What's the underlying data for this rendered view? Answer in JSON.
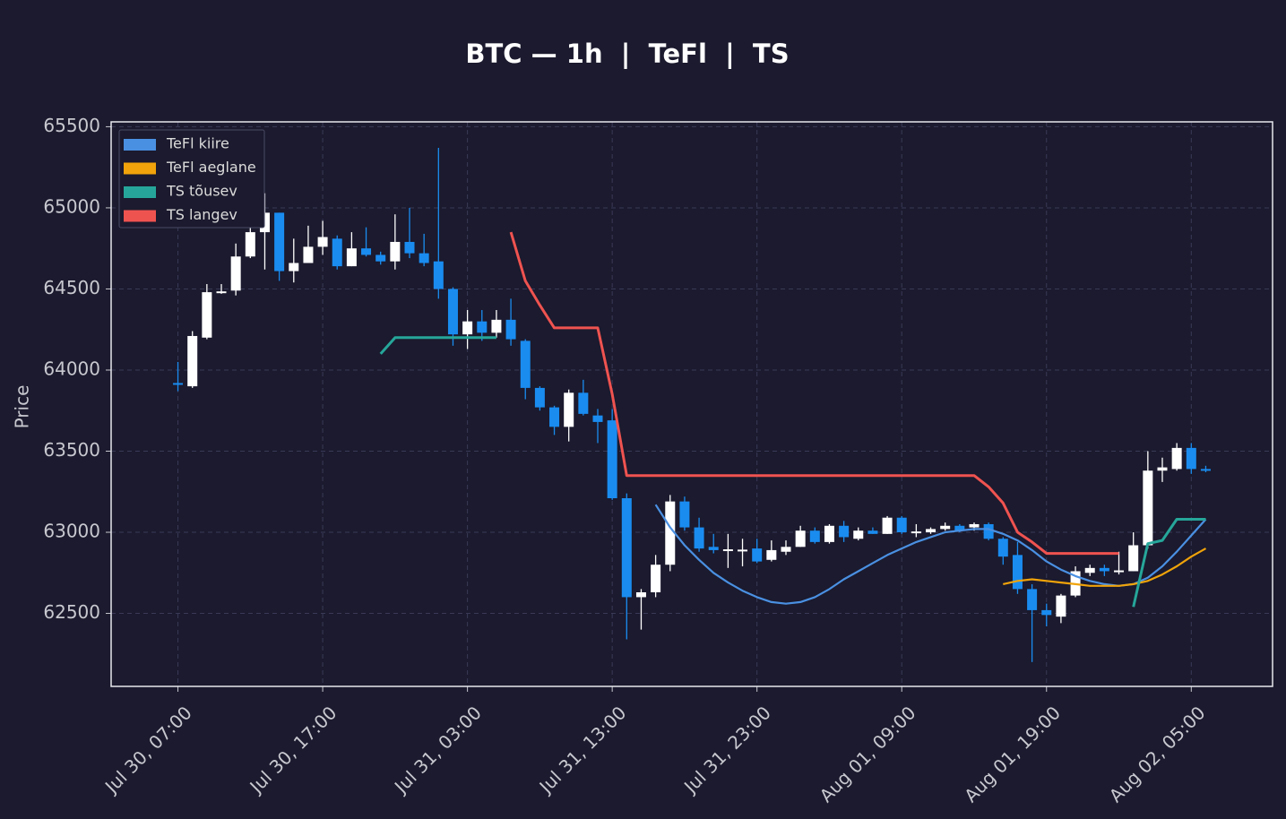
{
  "chart_data": {
    "type": "candlestick",
    "title": "BTC — 1h  |  TeFl  |  TS",
    "y_label": "Price",
    "up_color": "#ffffff",
    "down_color": "#1a8cf0",
    "grid": true,
    "legend": "upper left",
    "ylim": [
      62050,
      65530
    ],
    "yticks": [
      62500,
      63000,
      63500,
      64000,
      64500,
      65000,
      65500
    ],
    "xticks": [
      "Jul 30, 07:00",
      "Jul 30, 17:00",
      "Jul 31, 03:00",
      "Jul 31, 13:00",
      "Jul 31, 23:00",
      "Aug 01, 09:00",
      "Aug 01, 19:00",
      "Aug 02, 05:00"
    ],
    "x": [
      "Jul 30, 07:00",
      "Jul 30, 08:00",
      "Jul 30, 09:00",
      "Jul 30, 10:00",
      "Jul 30, 11:00",
      "Jul 30, 12:00",
      "Jul 30, 13:00",
      "Jul 30, 14:00",
      "Jul 30, 15:00",
      "Jul 30, 16:00",
      "Jul 30, 17:00",
      "Jul 30, 18:00",
      "Jul 30, 19:00",
      "Jul 30, 20:00",
      "Jul 30, 21:00",
      "Jul 30, 22:00",
      "Jul 30, 23:00",
      "Jul 31, 00:00",
      "Jul 31, 01:00",
      "Jul 31, 02:00",
      "Jul 31, 03:00",
      "Jul 31, 04:00",
      "Jul 31, 05:00",
      "Jul 31, 06:00",
      "Jul 31, 07:00",
      "Jul 31, 08:00",
      "Jul 31, 09:00",
      "Jul 31, 10:00",
      "Jul 31, 11:00",
      "Jul 31, 12:00",
      "Jul 31, 13:00",
      "Jul 31, 14:00",
      "Jul 31, 15:00",
      "Jul 31, 16:00",
      "Jul 31, 17:00",
      "Jul 31, 18:00",
      "Jul 31, 19:00",
      "Jul 31, 20:00",
      "Jul 31, 21:00",
      "Jul 31, 22:00",
      "Jul 31, 23:00",
      "Aug 01, 00:00",
      "Aug 01, 01:00",
      "Aug 01, 02:00",
      "Aug 01, 03:00",
      "Aug 01, 04:00",
      "Aug 01, 05:00",
      "Aug 01, 06:00",
      "Aug 01, 07:00",
      "Aug 01, 08:00",
      "Aug 01, 09:00",
      "Aug 01, 10:00",
      "Aug 01, 11:00",
      "Aug 01, 12:00",
      "Aug 01, 13:00",
      "Aug 01, 14:00",
      "Aug 01, 15:00",
      "Aug 01, 16:00",
      "Aug 01, 17:00",
      "Aug 01, 18:00",
      "Aug 01, 19:00",
      "Aug 01, 20:00",
      "Aug 01, 21:00",
      "Aug 01, 22:00",
      "Aug 01, 23:00",
      "Aug 02, 00:00",
      "Aug 02, 01:00",
      "Aug 02, 02:00",
      "Aug 02, 03:00",
      "Aug 02, 04:00",
      "Aug 02, 05:00",
      "Aug 02, 06:00"
    ],
    "open": [
      63920,
      63900,
      64200,
      64480,
      64490,
      64700,
      64850,
      64970,
      64610,
      64660,
      64760,
      64810,
      64640,
      64750,
      64710,
      64670,
      64790,
      64720,
      64670,
      64500,
      64220,
      64300,
      64230,
      64310,
      64180,
      63890,
      63770,
      63650,
      63860,
      63720,
      63690,
      63210,
      62600,
      62630,
      62800,
      63190,
      63030,
      62910,
      62890,
      62890,
      62900,
      62830,
      62880,
      62910,
      63010,
      62940,
      63040,
      62960,
      63010,
      62990,
      63090,
      63000,
      63000,
      63020,
      63040,
      63030,
      63050,
      62960,
      62860,
      62650,
      62520,
      62480,
      62610,
      62750,
      62780,
      62760,
      62760,
      62920,
      63380,
      63390,
      63520,
      63390
    ],
    "high": [
      64050,
      64240,
      64530,
      64530,
      64780,
      64920,
      65090,
      64970,
      64810,
      64890,
      64920,
      64830,
      64850,
      64880,
      64730,
      64960,
      65000,
      64840,
      65370,
      64510,
      64370,
      64370,
      64370,
      64440,
      64190,
      63900,
      63780,
      63880,
      63940,
      63760,
      63760,
      63240,
      62650,
      62860,
      63230,
      63220,
      63090,
      62990,
      62990,
      62960,
      62960,
      62950,
      62950,
      63040,
      63030,
      63050,
      63070,
      63030,
      63030,
      63100,
      63100,
      63050,
      63030,
      63060,
      63050,
      63060,
      63060,
      62970,
      62940,
      62680,
      62560,
      62620,
      62790,
      62800,
      62800,
      62880,
      63000,
      63500,
      63460,
      63550,
      63550,
      63410
    ],
    "low": [
      63870,
      63890,
      64190,
      64470,
      64460,
      64690,
      64620,
      64550,
      64540,
      64660,
      64710,
      64620,
      64640,
      64700,
      64650,
      64620,
      64690,
      64640,
      64440,
      64150,
      64130,
      64180,
      64200,
      64150,
      63820,
      63750,
      63600,
      63560,
      63720,
      63550,
      63200,
      62340,
      62400,
      62600,
      62760,
      63010,
      62880,
      62870,
      62780,
      62790,
      62810,
      62820,
      62860,
      62910,
      62930,
      62930,
      62940,
      62950,
      62990,
      62990,
      62990,
      62970,
      62990,
      63010,
      63000,
      63010,
      62950,
      62800,
      62620,
      62200,
      62420,
      62440,
      62600,
      62730,
      62730,
      62740,
      62760,
      62900,
      63310,
      63380,
      63360,
      63370
    ],
    "close": [
      63915,
      64210,
      64480,
      64485,
      64700,
      64850,
      64970,
      64610,
      64660,
      64760,
      64820,
      64640,
      64750,
      64710,
      64670,
      64790,
      64720,
      64660,
      64500,
      64220,
      64300,
      64230,
      64310,
      64190,
      63890,
      63770,
      63650,
      63860,
      63730,
      63680,
      63210,
      62600,
      62630,
      62800,
      63190,
      63030,
      62900,
      62890,
      62895,
      62893,
      62820,
      62890,
      62910,
      63010,
      62940,
      63040,
      62970,
      63010,
      62990,
      63090,
      63000,
      63005,
      63020,
      63040,
      63010,
      63050,
      62960,
      62850,
      62650,
      62520,
      62490,
      62610,
      62760,
      62780,
      62760,
      62765,
      62920,
      63380,
      63400,
      63520,
      63390,
      63380
    ],
    "series": [
      {
        "name": "TeFl kiire",
        "color": "#4a90e2",
        "values": [
          null,
          null,
          null,
          null,
          null,
          null,
          null,
          null,
          null,
          null,
          null,
          null,
          null,
          null,
          null,
          null,
          null,
          null,
          null,
          null,
          null,
          null,
          null,
          null,
          null,
          null,
          null,
          null,
          null,
          null,
          null,
          null,
          null,
          63170,
          63030,
          62920,
          62830,
          62750,
          62690,
          62640,
          62600,
          62570,
          62560,
          62570,
          62600,
          62650,
          62710,
          62760,
          62810,
          62860,
          62900,
          62940,
          62970,
          63000,
          63010,
          63020,
          63020,
          62990,
          62950,
          62890,
          62820,
          62770,
          62730,
          62700,
          62680,
          62670,
          62680,
          62720,
          62790,
          62880,
          62980,
          63080
        ]
      },
      {
        "name": "TeFl aeglane",
        "color": "#f0a30a",
        "values": [
          null,
          null,
          null,
          null,
          null,
          null,
          null,
          null,
          null,
          null,
          null,
          null,
          null,
          null,
          null,
          null,
          null,
          null,
          null,
          null,
          null,
          null,
          null,
          null,
          null,
          null,
          null,
          null,
          null,
          null,
          null,
          null,
          null,
          null,
          null,
          null,
          null,
          null,
          null,
          null,
          null,
          null,
          null,
          null,
          null,
          null,
          null,
          null,
          null,
          null,
          null,
          null,
          null,
          null,
          null,
          null,
          null,
          62680,
          62700,
          62710,
          62700,
          62690,
          62680,
          62670,
          62670,
          62670,
          62680,
          62700,
          62740,
          62790,
          62850,
          62900
        ]
      },
      {
        "name": "TS tõusev",
        "color": "#26a69a",
        "values": [
          null,
          null,
          null,
          null,
          null,
          null,
          null,
          null,
          null,
          null,
          null,
          null,
          null,
          null,
          64100,
          64200,
          64200,
          64200,
          64200,
          64200,
          64200,
          64200,
          64200,
          null,
          null,
          null,
          null,
          null,
          null,
          null,
          null,
          null,
          null,
          null,
          null,
          null,
          null,
          null,
          null,
          null,
          null,
          null,
          null,
          null,
          null,
          null,
          null,
          null,
          null,
          null,
          null,
          null,
          null,
          null,
          null,
          null,
          null,
          null,
          null,
          null,
          null,
          null,
          null,
          null,
          null,
          null,
          62540,
          62930,
          62950,
          63080,
          63080,
          63080
        ]
      },
      {
        "name": "TS langev",
        "color": "#ef5350",
        "values": [
          null,
          null,
          null,
          null,
          null,
          null,
          null,
          null,
          null,
          null,
          null,
          null,
          null,
          null,
          null,
          null,
          null,
          null,
          null,
          null,
          null,
          null,
          null,
          64850,
          64550,
          64400,
          64260,
          64260,
          64260,
          64260,
          63850,
          63350,
          63350,
          63350,
          63350,
          63350,
          63350,
          63350,
          63350,
          63350,
          63350,
          63350,
          63350,
          63350,
          63350,
          63350,
          63350,
          63350,
          63350,
          63350,
          63350,
          63350,
          63350,
          63350,
          63350,
          63350,
          63280,
          63180,
          63000,
          62940,
          62870,
          62870,
          62870,
          62870,
          62870,
          62870,
          null,
          null,
          null,
          null,
          null,
          null
        ]
      }
    ]
  }
}
